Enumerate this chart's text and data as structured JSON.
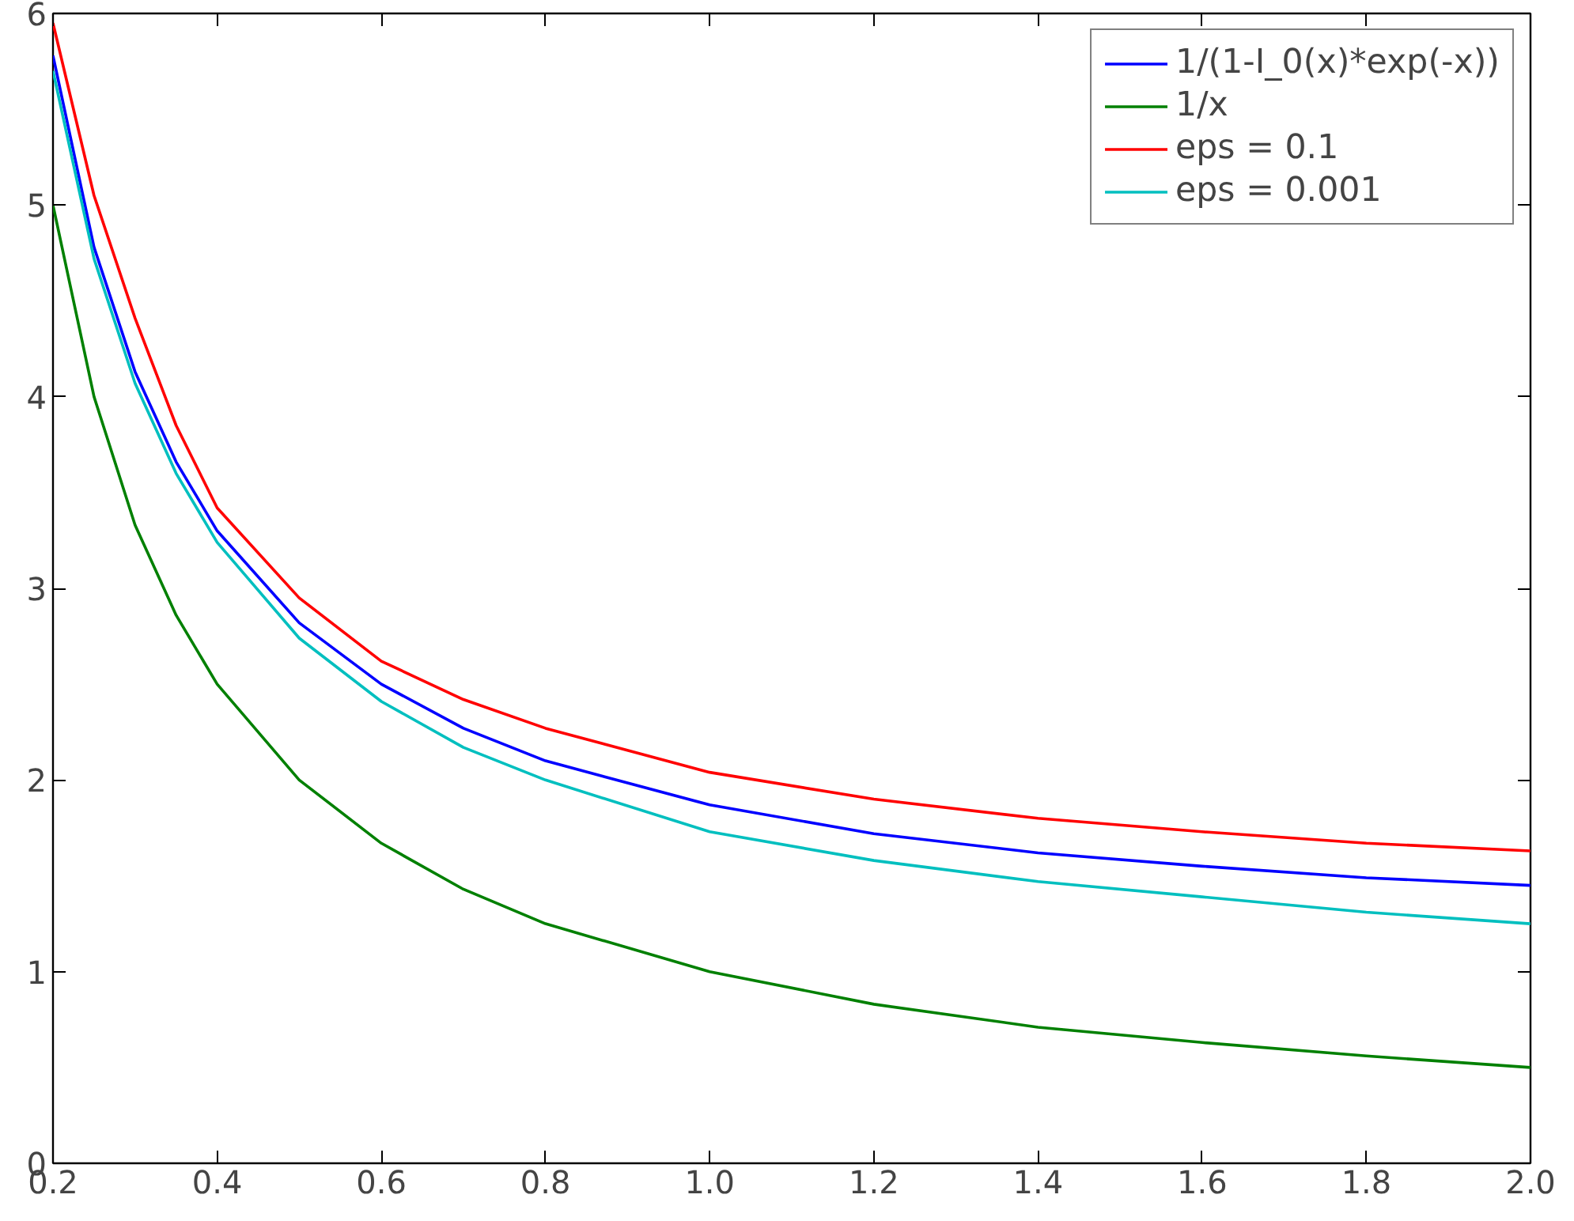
{
  "chart_data": {
    "type": "line",
    "x": [
      0.2,
      0.25,
      0.3,
      0.35,
      0.4,
      0.5,
      0.6,
      0.7,
      0.8,
      1.0,
      1.2,
      1.4,
      1.6,
      1.8,
      2.0
    ],
    "series": [
      {
        "name": "1/(1-I_0(x)*exp(-x))",
        "color": "#0000ff",
        "values": [
          5.78,
          4.78,
          4.13,
          3.66,
          3.3,
          2.82,
          2.5,
          2.27,
          2.1,
          1.87,
          1.72,
          1.62,
          1.55,
          1.49,
          1.45
        ]
      },
      {
        "name": "1/x",
        "color": "#008000",
        "values": [
          5.0,
          4.0,
          3.33,
          2.86,
          2.5,
          2.0,
          1.67,
          1.43,
          1.25,
          1.0,
          0.83,
          0.71,
          0.63,
          0.56,
          0.5
        ]
      },
      {
        "name": "eps = 0.1",
        "color": "#ff0000",
        "values": [
          5.95,
          5.05,
          4.41,
          3.85,
          3.42,
          2.95,
          2.62,
          2.42,
          2.27,
          2.04,
          1.9,
          1.8,
          1.73,
          1.67,
          1.63
        ]
      },
      {
        "name": "eps = 0.001",
        "color": "#00bfbf",
        "values": [
          5.7,
          4.72,
          4.07,
          3.6,
          3.24,
          2.74,
          2.41,
          2.17,
          2.0,
          1.73,
          1.58,
          1.47,
          1.39,
          1.31,
          1.25
        ]
      }
    ],
    "xlim": [
      0.2,
      2.0
    ],
    "ylim": [
      0,
      6
    ],
    "xticks": [
      0.2,
      0.4,
      0.6,
      0.8,
      {
        "value": 1,
        "label": "1.0"
      },
      1.2,
      1.4,
      1.6,
      1.8,
      {
        "value": 2,
        "label": "2.0"
      }
    ],
    "yticks": [
      0,
      1,
      2,
      3,
      4,
      5,
      6
    ],
    "grid": false,
    "legend": "top right",
    "line_style": "solid"
  }
}
